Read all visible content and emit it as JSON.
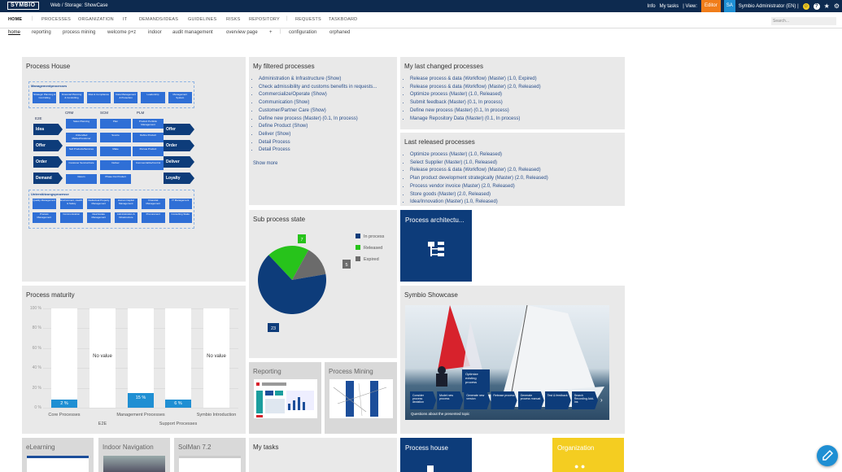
{
  "topbar": {
    "logo": "SYMBIO",
    "breadcrumb": "Web  /  Storage: ShowCase",
    "info": "Info",
    "my_tasks": "My tasks",
    "view": "| View:",
    "editor": "Editor",
    "user_initials": "SA",
    "user": "Symbio Administrator (EN)  |"
  },
  "nav1": [
    "HOME",
    "PROCESSES",
    "ORGANIZATION",
    "IT",
    "DEMANDS/IDEAS",
    "GUIDELINES",
    "RISKS",
    "REPOSITORY",
    "REQUESTS",
    "TASKBOARD"
  ],
  "search_placeholder": "Search...",
  "nav2": [
    "home",
    "reporting",
    "process mining",
    "welcome p+z",
    "indoor",
    "audit management",
    "overview page",
    "+",
    "configuration",
    "orphaned"
  ],
  "process_house": {
    "title": "Process House",
    "management": "Managementprocesses",
    "mgmt_boxes": [
      "Strategic Planning & Controlling",
      "Financial Planning & Controlling",
      "Risk & Compliance",
      "Data Management & Protection",
      "Leadership",
      "Management System"
    ],
    "e2e": "E2E",
    "crm": "CRM",
    "scm": "SCM",
    "plm": "PLM",
    "left_arrows": [
      "Idea",
      "Offer",
      "Order",
      "Demand"
    ],
    "right_arrows": [
      "Offer",
      "Order",
      "Deliver",
      "Loyalty"
    ],
    "grid": [
      "Sales Planning",
      "Plan",
      "Product Portfolio Management",
      "Unbundled Market/Customer",
      "Source",
      "Define Product",
      "Sell Products/Services",
      "Make",
      "Pursue Product",
      "Customer Service/Care",
      "Deliver",
      "Commercialize/Control",
      "Return",
      "Phase Out Product"
    ],
    "support": "Unterstützungsprozesse",
    "support_boxes": [
      "Quality Management",
      "Environment, Health & Safety",
      "Intellectual Property Management",
      "Human Capital Management",
      "Financial Management",
      "IT Management",
      "Process Management",
      "Communication",
      "Real Estate Management",
      "Administration & Infrastructure",
      "Procurement",
      "Consulting Stake"
    ]
  },
  "filtered": {
    "title": "My filtered processes",
    "items": [
      "Administration & Infrastructure (Show)",
      "Check admissibility and customs benefits in requests...",
      "Commercialize/Operate (Show)",
      "Communication (Show)",
      "Customer/Partner Care (Show)",
      "Define new process (Master) (0.1, In process)",
      "Define Product (Show)",
      "Deliver (Show)",
      "Detail Process",
      "Detail Process"
    ],
    "more": "Show more"
  },
  "last_changed": {
    "title": "My last changed processes",
    "items": [
      "Release process & data (Workflow) (Master) (1.0, Expired)",
      "Release process & data (Workflow) (Master) (2.0, Released)",
      "Optimize process (Master) (1.0, Released)",
      "Submit feedback (Master) (0.1, In process)",
      "Define new process (Master) (0.1, In process)",
      "Manage Repository Data (Master) (0.1, In process)"
    ]
  },
  "last_released": {
    "title": "Last released processes",
    "items": [
      "Optimize process (Master) (1.0, Released)",
      "Select Supplier (Master) (1.0, Released)",
      "Release process & data (Workflow) (Master) (2.0, Released)",
      "Plan product development strategically (Master) (2.0, Released)",
      "Process vendor invoice (Master) (2.0, Released)",
      "Store goods (Master) (2.0, Released)",
      "Idea/Innovation (Master) (1.0, Released)"
    ]
  },
  "arch_tile": {
    "title": "Process architectu..."
  },
  "maturity": {
    "title": "Process maturity",
    "yticks": [
      "100 %",
      "80 %",
      "60 %",
      "40 %",
      "20 %",
      "0 %"
    ],
    "bars": [
      {
        "label": "Core Processes",
        "value": 2,
        "text": "2 %"
      },
      {
        "label": "E2E",
        "value": null,
        "text": "No value"
      },
      {
        "label": "Management Processes",
        "value": 15,
        "text": "15 %"
      },
      {
        "label": "Support Processes",
        "value": 6,
        "text": "6 %"
      },
      {
        "label": "Symbio Introduction",
        "value": null,
        "text": "No value"
      }
    ]
  },
  "chart_data": {
    "type": "pie",
    "title": "Sub process state",
    "slices": [
      {
        "name": "In process",
        "value": 23,
        "color": "#0d3c7a"
      },
      {
        "name": "Released",
        "value": 7,
        "color": "#27c31b"
      },
      {
        "name": "Expired",
        "value": 5,
        "color": "#6b6b6b"
      }
    ]
  },
  "showcase": {
    "title": "Symbio Showcase",
    "tooltip": "Optimize existing process",
    "steps": [
      "Consider process deviation",
      "Model new process",
      "Generate new version",
      "Release process",
      "Generate process manual",
      "Test & feedback",
      "Search Recording Add-Ins"
    ],
    "question": "Questions about the presented topic",
    "nav": "›"
  },
  "reporting": {
    "title": "Reporting"
  },
  "mining": {
    "title": "Process Mining"
  },
  "elearning": {
    "title": "eLearning"
  },
  "indoor": {
    "title": "Indoor Navigation"
  },
  "solman": {
    "title": "SolMan 7.2"
  },
  "mytasks": {
    "title": "My tasks"
  },
  "process_house_tile": {
    "title": "Process house"
  },
  "organization_tile": {
    "title": "Organization"
  },
  "colors": {
    "navy": "#0d2a4f",
    "tile_blue": "#0d3c7a",
    "accent": "#1f8fd3",
    "editor": "#f07d1a",
    "yellow": "#f4cd21"
  },
  "fab_icon": "pencil-icon"
}
